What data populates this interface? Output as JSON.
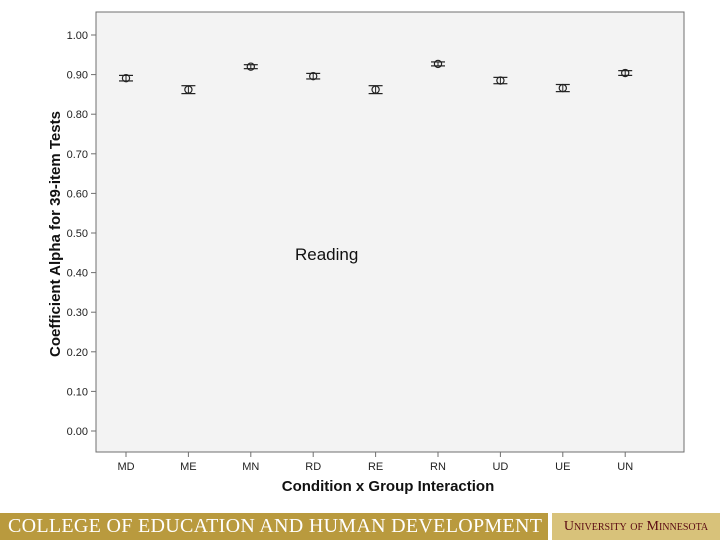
{
  "chart_data": {
    "type": "scatter",
    "title": "",
    "xlabel": "Condition x Group Interaction",
    "ylabel": "Coefficient Alpha for 39-item Tests",
    "ylim": [
      0,
      1
    ],
    "yticks": [
      "0.00",
      "0.10",
      "0.20",
      "0.30",
      "0.40",
      "0.50",
      "0.60",
      "0.70",
      "0.80",
      "0.90",
      "1.00"
    ],
    "categories": [
      "MD",
      "ME",
      "MN",
      "RD",
      "RE",
      "RN",
      "UD",
      "UE",
      "UN"
    ],
    "values": [
      0.891,
      0.862,
      0.92,
      0.896,
      0.862,
      0.927,
      0.885,
      0.866,
      0.904
    ],
    "error_low": [
      0.884,
      0.852,
      0.915,
      0.889,
      0.852,
      0.922,
      0.877,
      0.857,
      0.898
    ],
    "error_high": [
      0.898,
      0.872,
      0.925,
      0.903,
      0.872,
      0.932,
      0.893,
      0.875,
      0.91
    ],
    "grid": false,
    "legend": "none",
    "colors": {
      "marker": "#222222",
      "frame": "#6f6f6f",
      "background": "#f3f3f3"
    }
  },
  "annotation": "Reading",
  "footer": {
    "left": "COLLEGE OF EDUCATION AND HUMAN DEVELOPMENT",
    "right": "University of Minnesota",
    "colors": {
      "left_bg": "#b99a3e",
      "right_bg": "#d8c27a",
      "right_text": "#5a0a12"
    }
  }
}
